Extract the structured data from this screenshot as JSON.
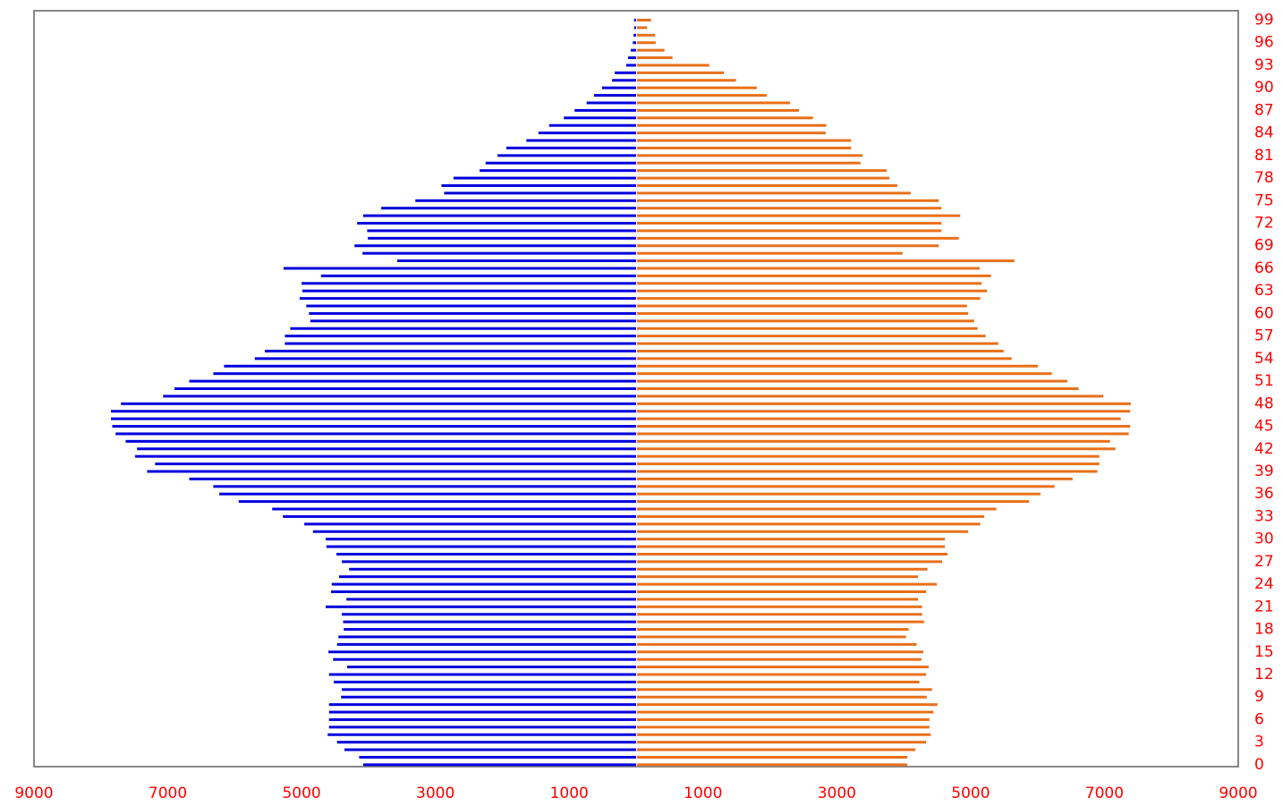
{
  "chart_data": {
    "type": "pyramid",
    "y": [
      0,
      1,
      2,
      3,
      4,
      5,
      6,
      7,
      8,
      9,
      10,
      11,
      12,
      13,
      14,
      15,
      16,
      17,
      18,
      19,
      20,
      21,
      22,
      23,
      24,
      25,
      26,
      27,
      28,
      29,
      30,
      31,
      32,
      33,
      34,
      35,
      36,
      37,
      38,
      39,
      40,
      41,
      42,
      43,
      44,
      45,
      46,
      47,
      48,
      49,
      50,
      51,
      52,
      53,
      54,
      55,
      56,
      57,
      58,
      59,
      60,
      61,
      62,
      63,
      64,
      65,
      66,
      67,
      68,
      69,
      70,
      71,
      72,
      73,
      74,
      75,
      76,
      77,
      78,
      79,
      80,
      81,
      82,
      83,
      84,
      85,
      86,
      87,
      88,
      89,
      90,
      91,
      92,
      93,
      94,
      95,
      96,
      97,
      98,
      99
    ],
    "series": [
      {
        "color": "#0000dd",
        "values": [
          -4080,
          -4140,
          -4360,
          -4470,
          -4610,
          -4590,
          -4590,
          -4590,
          -4590,
          -4410,
          -4400,
          -4520,
          -4590,
          -4320,
          -4530,
          -4600,
          -4470,
          -4450,
          -4370,
          -4380,
          -4400,
          -4640,
          -4330,
          -4560,
          -4550,
          -4440,
          -4290,
          -4400,
          -4480,
          -4630,
          -4640,
          -4830,
          -4960,
          -5280,
          -5440,
          -5940,
          -6230,
          -6320,
          -6680,
          -7310,
          -7190,
          -7490,
          -7460,
          -7630,
          -7780,
          -7830,
          -7850,
          -7850,
          -7700,
          -7070,
          -6900,
          -6680,
          -6320,
          -6160,
          -5700,
          -5550,
          -5250,
          -5250,
          -5170,
          -4870,
          -4890,
          -4930,
          -5030,
          -4990,
          -5000,
          -4710,
          -5270,
          -3570,
          -4090,
          -4210,
          -4010,
          -4020,
          -4170,
          -4080,
          -3810,
          -3300,
          -2870,
          -2910,
          -2730,
          -2340,
          -2250,
          -2070,
          -1940,
          -1640,
          -1460,
          -1300,
          -1080,
          -920,
          -740,
          -630,
          -510,
          -360,
          -320,
          -150,
          -120,
          -80,
          -50,
          -40,
          -30,
          -30
        ]
      },
      {
        "color": "#e8701a",
        "values": [
          4040,
          4040,
          4160,
          4320,
          4390,
          4370,
          4370,
          4430,
          4490,
          4330,
          4410,
          4220,
          4320,
          4360,
          4250,
          4280,
          4180,
          4020,
          4060,
          4290,
          4260,
          4260,
          4200,
          4320,
          4480,
          4200,
          4340,
          4560,
          4640,
          4600,
          4600,
          4950,
          5130,
          5190,
          5370,
          5860,
          6030,
          6240,
          6510,
          6880,
          6910,
          6910,
          7150,
          7070,
          7350,
          7370,
          7230,
          7370,
          7380,
          6970,
          6600,
          6430,
          6200,
          5990,
          5600,
          5480,
          5400,
          5210,
          5090,
          5040,
          4950,
          4930,
          5130,
          5230,
          5150,
          5290,
          5120,
          5640,
          3970,
          4510,
          4810,
          4550,
          4550,
          4830,
          4550,
          4510,
          4090,
          3890,
          3770,
          3730,
          3340,
          3370,
          3200,
          3200,
          2820,
          2830,
          2630,
          2420,
          2290,
          1940,
          1790,
          1480,
          1300,
          1080,
          530,
          410,
          280,
          270,
          150,
          210
        ]
      }
    ],
    "xlim": [
      -9000,
      9000
    ],
    "xticks": [
      {
        "value": -9000,
        "label": "9000"
      },
      {
        "value": -7000,
        "label": "7000"
      },
      {
        "value": -5000,
        "label": "5000"
      },
      {
        "value": -3000,
        "label": "3000"
      },
      {
        "value": -1000,
        "label": "1000"
      },
      1000,
      3000,
      5000,
      7000,
      9000
    ],
    "ylim": [
      -0.25,
      100.25
    ],
    "yticks": [
      0,
      3,
      6,
      9,
      12,
      15,
      18,
      21,
      24,
      27,
      30,
      33,
      36,
      39,
      42,
      45,
      48,
      51,
      54,
      57,
      60,
      63,
      66,
      69,
      72,
      75,
      78,
      81,
      84,
      87,
      90,
      93,
      96,
      99
    ],
    "tick_color": "#ff0000"
  }
}
